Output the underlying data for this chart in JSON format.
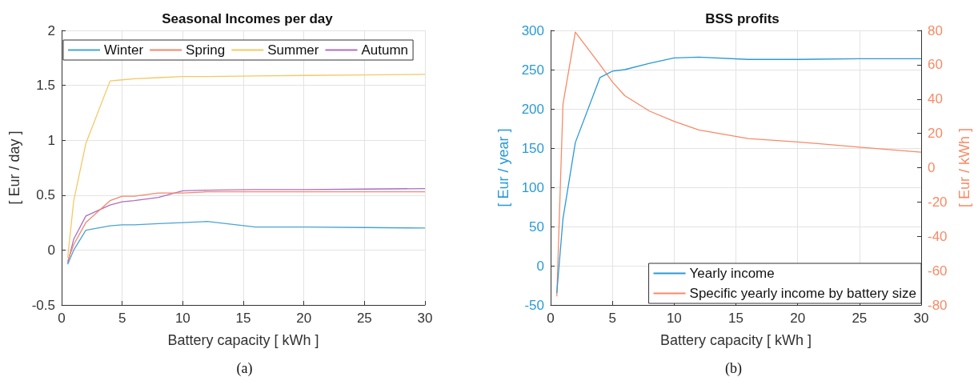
{
  "chart_data": [
    {
      "type": "line",
      "title": "Seasonal Incomes per day",
      "xlabel": "Battery capacity [ kWh ]",
      "ylabel": "[ Eur / day ]",
      "annotations": [
        "(a)"
      ],
      "x": [
        0.5,
        1,
        2,
        4,
        5,
        6,
        8,
        10,
        12,
        16,
        20,
        25,
        30
      ],
      "series": [
        {
          "name": "Winter",
          "color": "#4aa3d6",
          "values": [
            -0.13,
            0.0,
            0.18,
            0.22,
            0.23,
            0.23,
            0.24,
            0.25,
            0.26,
            0.21,
            0.21,
            0.205,
            0.2
          ]
        },
        {
          "name": "Spring",
          "color": "#f4876c",
          "values": [
            -0.1,
            0.05,
            0.25,
            0.45,
            0.49,
            0.49,
            0.52,
            0.52,
            0.53,
            0.53,
            0.53,
            0.53,
            0.53
          ]
        },
        {
          "name": "Summer",
          "color": "#f5c865",
          "values": [
            -0.07,
            0.45,
            0.97,
            1.54,
            1.55,
            1.56,
            1.57,
            1.58,
            1.58,
            1.585,
            1.59,
            1.595,
            1.6
          ]
        },
        {
          "name": "Autumn",
          "color": "#b06cc0",
          "values": [
            -0.12,
            0.1,
            0.31,
            0.41,
            0.44,
            0.45,
            0.48,
            0.54,
            0.545,
            0.55,
            0.55,
            0.555,
            0.56
          ]
        }
      ],
      "xlim": [
        0,
        30
      ],
      "xticks": [
        0,
        5,
        10,
        15,
        20,
        25,
        30
      ],
      "ylim": [
        -0.5,
        2
      ],
      "yticks": [
        -0.5,
        0,
        0.5,
        1,
        1.5,
        2
      ],
      "grid": true,
      "legend": "top"
    },
    {
      "type": "line",
      "title": "BSS profits",
      "xlabel": "Battery capacity [ kWh ]",
      "ylabel": "[ Eur / year ]",
      "y2label": "[ Eur / kWh ]",
      "annotations": [
        "(b)"
      ],
      "x": [
        0.5,
        1,
        2,
        4,
        5,
        6,
        8,
        10,
        12,
        16,
        20,
        25,
        30
      ],
      "series": [
        {
          "name": "Yearly income",
          "color": "#2a9ad6",
          "values": [
            -35,
            60,
            157,
            240,
            248,
            250,
            258,
            265,
            266,
            263,
            263,
            264,
            264
          ]
        },
        {
          "name": "Specific yearly income by battery size",
          "color": "#f88a66",
          "axis": "y2",
          "values": [
            -75,
            37,
            79,
            60,
            50,
            42,
            33,
            27,
            22,
            17,
            15,
            12,
            9
          ]
        }
      ],
      "xlim": [
        0,
        30
      ],
      "xticks": [
        0,
        5,
        10,
        15,
        20,
        25,
        30
      ],
      "ylim": [
        -50,
        300
      ],
      "yticks": [
        -50,
        0,
        50,
        100,
        150,
        200,
        250,
        300
      ],
      "y2lim": [
        -80,
        80
      ],
      "y2ticks": [
        -80,
        -60,
        -40,
        -20,
        0,
        20,
        40,
        60,
        80
      ],
      "grid": true,
      "legend": "bottom right"
    }
  ]
}
